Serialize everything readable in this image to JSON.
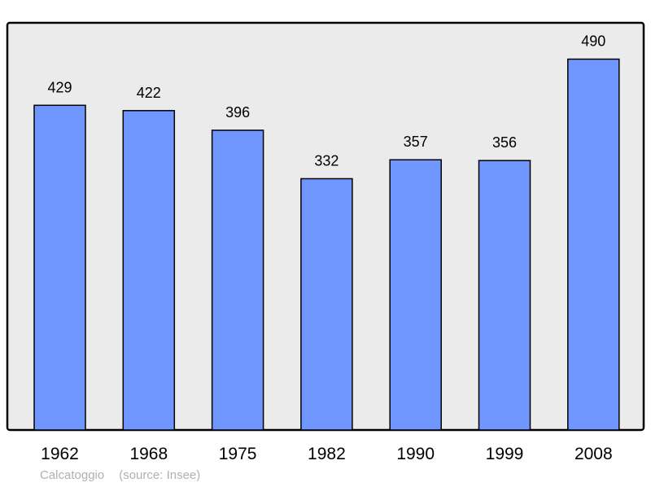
{
  "chart_data": {
    "type": "bar",
    "categories": [
      "1962",
      "1968",
      "1975",
      "1982",
      "1990",
      "1999",
      "2008"
    ],
    "values": [
      429,
      422,
      396,
      332,
      357,
      356,
      490
    ],
    "title": "",
    "xlabel": "",
    "ylabel": "",
    "ylim": [
      0,
      538
    ],
    "grid": false,
    "data_labels": true,
    "colors": {
      "bar": "#7096ff",
      "plot_background": "#ebebeb",
      "border": "#000000"
    }
  },
  "footer": {
    "commune": "Calcatoggio",
    "source": "(source: Insee)"
  }
}
